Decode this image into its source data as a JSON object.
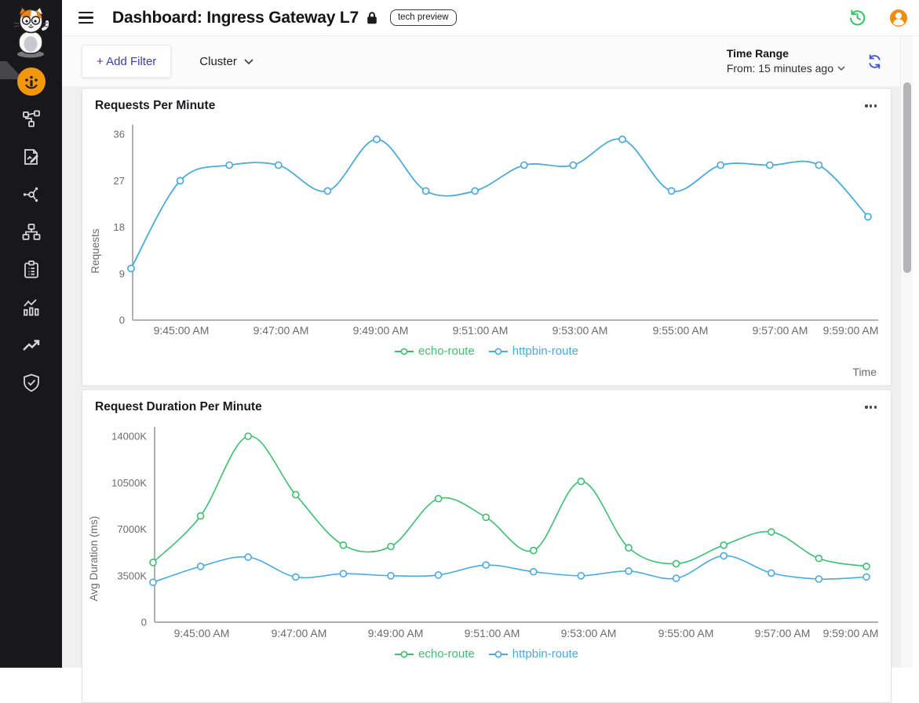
{
  "header": {
    "title": "Dashboard: Ingress Gateway L7",
    "badge": "tech preview"
  },
  "sidebar": {
    "logo": "cat-mascot-logo",
    "items": [
      {
        "icon": "gauge-icon",
        "active": true
      },
      {
        "icon": "topology-icon",
        "active": false
      },
      {
        "icon": "policies-icon",
        "active": false
      },
      {
        "icon": "services-icon",
        "active": false
      },
      {
        "icon": "zones-icon",
        "active": false
      },
      {
        "icon": "inventory-icon",
        "active": false
      },
      {
        "icon": "analytics-icon",
        "active": false
      },
      {
        "icon": "trends-icon",
        "active": false
      },
      {
        "icon": "security-icon",
        "active": false
      }
    ]
  },
  "topbar_icons": [
    "history-icon",
    "user-avatar-icon"
  ],
  "filter_bar": {
    "add_filter_label": "+ Add Filter",
    "cluster_label": "Cluster",
    "time_range_label": "Time Range",
    "time_range_value": "From: 15 minutes ago",
    "refresh_icon": "refresh-icon"
  },
  "colors": {
    "sidebar_bg": "#18181b",
    "active_orange": "#F2960D",
    "avatar_orange": "#F28C11",
    "history_green": "#2FC65D",
    "refresh_blue": "#3D55D8",
    "series_green": "#3DBE71",
    "series_blue": "#4AA9E0",
    "axis_gray": "#b0b0b4"
  },
  "chart_data": [
    {
      "type": "line",
      "title": "Requests Per Minute",
      "xlabel": "Time",
      "ylabel": "Requests",
      "ylim": [
        0,
        36
      ],
      "y_tick_labels": [
        "0",
        "9",
        "18",
        "27",
        "36"
      ],
      "x": [
        "9:44:00 AM",
        "9:45:00 AM",
        "9:46:00 AM",
        "9:47:00 AM",
        "9:48:00 AM",
        "9:49:00 AM",
        "9:50:00 AM",
        "9:51:00 AM",
        "9:52:00 AM",
        "9:53:00 AM",
        "9:54:00 AM",
        "9:55:00 AM",
        "9:56:00 AM",
        "9:57:00 AM",
        "9:58:00 AM",
        "9:59:00 AM"
      ],
      "x_tick_labels": [
        "9:45:00 AM",
        "9:47:00 AM",
        "9:49:00 AM",
        "9:51:00 AM",
        "9:53:00 AM",
        "9:55:00 AM",
        "9:57:00 AM",
        "9:59:00 AM"
      ],
      "legend_position": "bottom",
      "grid": false,
      "series": [
        {
          "name": "echo-route",
          "color": "#3DBE71",
          "values": [
            10,
            27,
            30,
            30,
            25,
            35,
            25,
            25,
            30,
            30,
            35,
            25,
            30,
            30,
            30,
            20
          ]
        },
        {
          "name": "httpbin-route",
          "color": "#4AA9E0",
          "values": [
            10,
            27,
            30,
            30,
            25,
            35,
            25,
            25,
            30,
            30,
            35,
            25,
            30,
            30,
            30,
            20
          ]
        }
      ]
    },
    {
      "type": "line",
      "title": "Request Duration Per Minute",
      "xlabel": "",
      "ylabel": "Avg Duration (ms)",
      "ylim": [
        0,
        14000
      ],
      "y_unit": "K",
      "y_tick_labels": [
        "0",
        "3500K",
        "7000K",
        "10500K",
        "14000K"
      ],
      "x": [
        "9:44:00 AM",
        "9:45:00 AM",
        "9:46:00 AM",
        "9:47:00 AM",
        "9:48:00 AM",
        "9:49:00 AM",
        "9:50:00 AM",
        "9:51:00 AM",
        "9:52:00 AM",
        "9:53:00 AM",
        "9:54:00 AM",
        "9:55:00 AM",
        "9:56:00 AM",
        "9:57:00 AM",
        "9:58:00 AM",
        "9:59:00 AM"
      ],
      "x_tick_labels": [
        "9:45:00 AM",
        "9:47:00 AM",
        "9:49:00 AM",
        "9:51:00 AM",
        "9:53:00 AM",
        "9:55:00 AM",
        "9:57:00 AM",
        "9:59:00 AM"
      ],
      "legend_position": "bottom",
      "grid": false,
      "series": [
        {
          "name": "echo-route",
          "color": "#3DBE71",
          "values": [
            4500,
            8000,
            14000,
            9600,
            5800,
            5700,
            9300,
            7900,
            5400,
            10600,
            5600,
            4400,
            5800,
            6800,
            4800,
            4200
          ]
        },
        {
          "name": "httpbin-route",
          "color": "#4AA9E0",
          "values": [
            3000,
            4200,
            4900,
            3400,
            3650,
            3500,
            3550,
            4300,
            3800,
            3500,
            3850,
            3300,
            5000,
            3700,
            3250,
            3400
          ]
        }
      ]
    }
  ]
}
